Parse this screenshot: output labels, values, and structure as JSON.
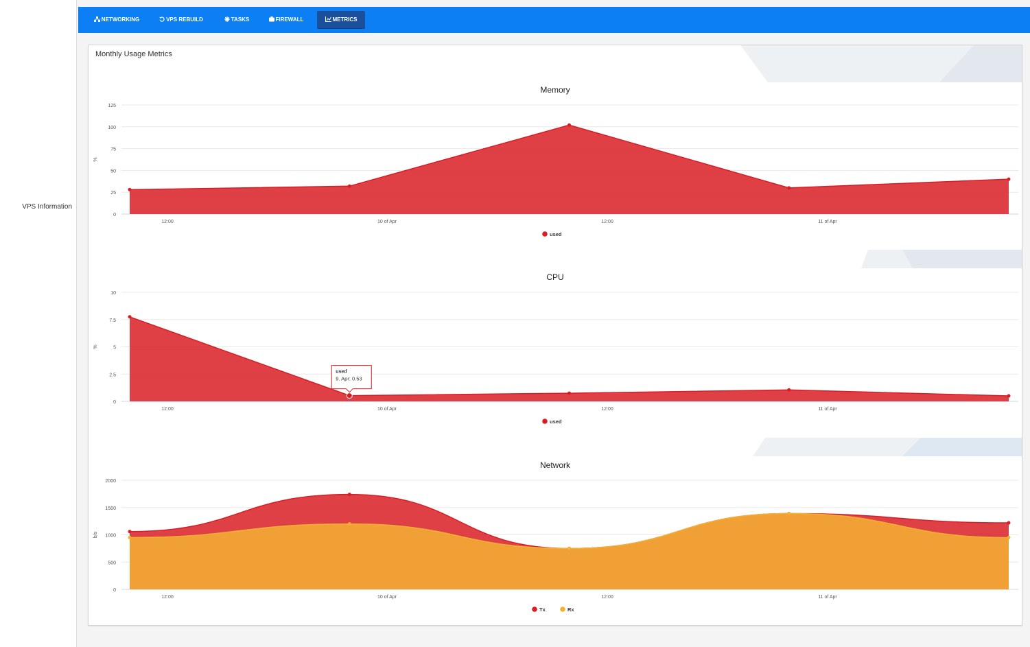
{
  "sidebar": {
    "item_label": "VPS Information"
  },
  "tabs": [
    {
      "label": "NETWORKING",
      "icon": "network-icon",
      "active": false
    },
    {
      "label": "VPS REBUILD",
      "icon": "rebuild-icon",
      "active": false
    },
    {
      "label": "TASKS",
      "icon": "gear-icon",
      "active": false
    },
    {
      "label": "FIREWALL",
      "icon": "firewall-icon",
      "active": false
    },
    {
      "label": "METRICS",
      "icon": "chart-icon",
      "active": true
    }
  ],
  "panel": {
    "title": "Monthly Usage Metrics"
  },
  "colors": {
    "tabbar": "#0d7ff5",
    "active_tab": "#1a4f9c",
    "series_red": "#d81e24",
    "series_orange": "#f3b133"
  },
  "chart_data": [
    {
      "type": "area",
      "title": "Memory",
      "ylabel": "%",
      "ylim": [
        0,
        125
      ],
      "yticks": [
        0,
        25,
        50,
        75,
        100,
        125
      ],
      "xtick_labels": [
        "12:00",
        "10 of Apr",
        "12:00",
        "11 of Apr"
      ],
      "legend_position": "bottom-center",
      "grid": true,
      "series": [
        {
          "name": "used",
          "color": "#d81e24",
          "x": [
            0,
            1,
            2,
            3,
            4
          ],
          "values": [
            28,
            32,
            102,
            30,
            40
          ]
        }
      ]
    },
    {
      "type": "area",
      "title": "CPU",
      "ylabel": "%",
      "ylim": [
        0,
        10
      ],
      "yticks": [
        0,
        2.5,
        5,
        7.5,
        10
      ],
      "xtick_labels": [
        "12:00",
        "10 of Apr",
        "12:00",
        "11 of Apr"
      ],
      "legend_position": "bottom-center",
      "grid": true,
      "tooltip": {
        "series": "used",
        "text": "9. Apr: 0.53",
        "point_index": 1
      },
      "series": [
        {
          "name": "used",
          "color": "#d81e24",
          "x": [
            0,
            1,
            2,
            3,
            4
          ],
          "values": [
            7.75,
            0.53,
            0.75,
            1.05,
            0.5
          ]
        }
      ]
    },
    {
      "type": "area",
      "title": "Network",
      "ylabel": "b/s",
      "ylim": [
        0,
        2000
      ],
      "yticks": [
        0,
        500,
        1000,
        1500,
        2000
      ],
      "xtick_labels": [
        "12:00",
        "10 of Apr",
        "12:00",
        "11 of Apr"
      ],
      "legend_position": "bottom-center",
      "grid": true,
      "series": [
        {
          "name": "Tx",
          "color": "#d81e24",
          "x": [
            0,
            1,
            2,
            3,
            4
          ],
          "values": [
            1060,
            1740,
            750,
            1390,
            1220
          ]
        },
        {
          "name": "Rx",
          "color": "#f3b133",
          "x": [
            0,
            1,
            2,
            3,
            4
          ],
          "values": [
            950,
            1200,
            750,
            1390,
            950
          ]
        }
      ]
    }
  ]
}
